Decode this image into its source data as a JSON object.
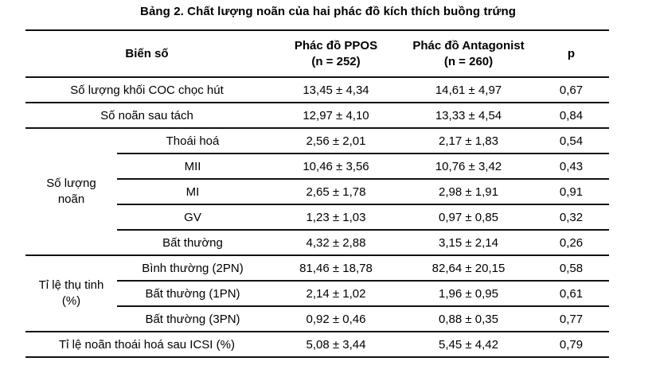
{
  "title": "Bảng 2. Chất lượng noãn của hai phác đồ kích thích buồng trứng",
  "table": {
    "header": {
      "variable": "Biến số",
      "ppos_line1": "Phác đồ PPOS",
      "ppos_line2": "(n = 252)",
      "antagonist_line1": "Phác đồ Antagonist",
      "antagonist_line2": "(n = 260)",
      "p": "p"
    },
    "groups": {
      "oocyte_count": {
        "line1": "Số lượng",
        "line2": "noãn"
      },
      "fertilization_rate": {
        "line1": "Tỉ lệ thụ tinh",
        "line2": "(%)"
      }
    },
    "rows": [
      {
        "label": "Số lượng khối COC chọc hút",
        "ppos": "13,45 ± 4,34",
        "antagonist": "14,61 ± 4,97",
        "p": "0,67"
      },
      {
        "label": "Số noãn sau tách",
        "ppos": "12,97 ± 4,10",
        "antagonist": "13,33 ± 4,54",
        "p": "0,84"
      },
      {
        "label": "Thoái hoá",
        "ppos": "2,56 ± 2,01",
        "antagonist": "2,17 ± 1,83",
        "p": "0,54"
      },
      {
        "label": "MII",
        "ppos": "10,46 ± 3,56",
        "antagonist": "10,76 ± 3,42",
        "p": "0,43"
      },
      {
        "label": "MI",
        "ppos": "2,65 ± 1,78",
        "antagonist": "2,98 ± 1,91",
        "p": "0,91"
      },
      {
        "label": "GV",
        "ppos": "1,23 ± 1,03",
        "antagonist": "0,97 ± 0,85",
        "p": "0,32"
      },
      {
        "label": "Bất thường",
        "ppos": "4,32 ± 2,88",
        "antagonist": "3,15 ± 2,14",
        "p": "0,26"
      },
      {
        "label": "Bình thường (2PN)",
        "ppos": "81,46 ± 18,78",
        "antagonist": "82,64 ± 20,15",
        "p": "0,58"
      },
      {
        "label": "Bất thường (1PN)",
        "ppos": "2,14 ± 1,02",
        "antagonist": "1,96 ± 0,95",
        "p": "0,61"
      },
      {
        "label": "Bất thường (3PN)",
        "ppos": "0,92 ± 0,46",
        "antagonist": "0,88 ± 0,35",
        "p": "0,77"
      },
      {
        "label": "Tỉ lệ noãn thoái hoá sau ICSI (%)",
        "ppos": "5,08 ± 3,44",
        "antagonist": "5,45 ± 4,42",
        "p": "0,79"
      }
    ]
  },
  "colors": {
    "text": "#000000",
    "rule": "#111111",
    "background": "#ffffff"
  }
}
